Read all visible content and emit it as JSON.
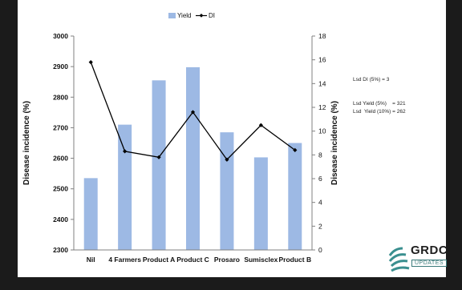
{
  "chart_data": {
    "type": "bar",
    "categories": [
      "Nil",
      "4 Farmers",
      "Product A",
      "Product C",
      "Prosaro",
      "Sumisclex",
      "Product B"
    ],
    "series": [
      {
        "name": "Yield",
        "kind": "bar",
        "axis": "left",
        "values": [
          2535,
          2710,
          2855,
          2898,
          2685,
          2603,
          2650
        ]
      },
      {
        "name": "DI",
        "kind": "line",
        "axis": "right",
        "values": [
          15.8,
          8.3,
          7.8,
          11.6,
          7.6,
          10.5,
          8.4
        ]
      }
    ],
    "ylabel_left": "Disease incidence (%)",
    "ylabel_right": "Disease incidence (%)",
    "ylim_left": [
      2300,
      3000
    ],
    "ylim_right": [
      0,
      18
    ],
    "yticks_left": [
      "2300",
      "2400",
      "2500",
      "2600",
      "2700",
      "2800",
      "2900",
      "3000"
    ],
    "yticks_right": [
      "0",
      "2",
      "4",
      "6",
      "8",
      "10",
      "12",
      "14",
      "16",
      "18"
    ],
    "legend_placement": "top-center",
    "grid": false,
    "colors": {
      "bar": "#9db9e4",
      "line": "#000000"
    }
  },
  "annotations": {
    "lsd_di": "Lsd DI (5%) = 3",
    "lsd_yield_5": "Lsd Yield (5%)    = 321",
    "lsd_yield_10": "Lsd  Yield (10%) = 262"
  },
  "logo": {
    "name": "GRDC",
    "sub": "UPDATES"
  }
}
